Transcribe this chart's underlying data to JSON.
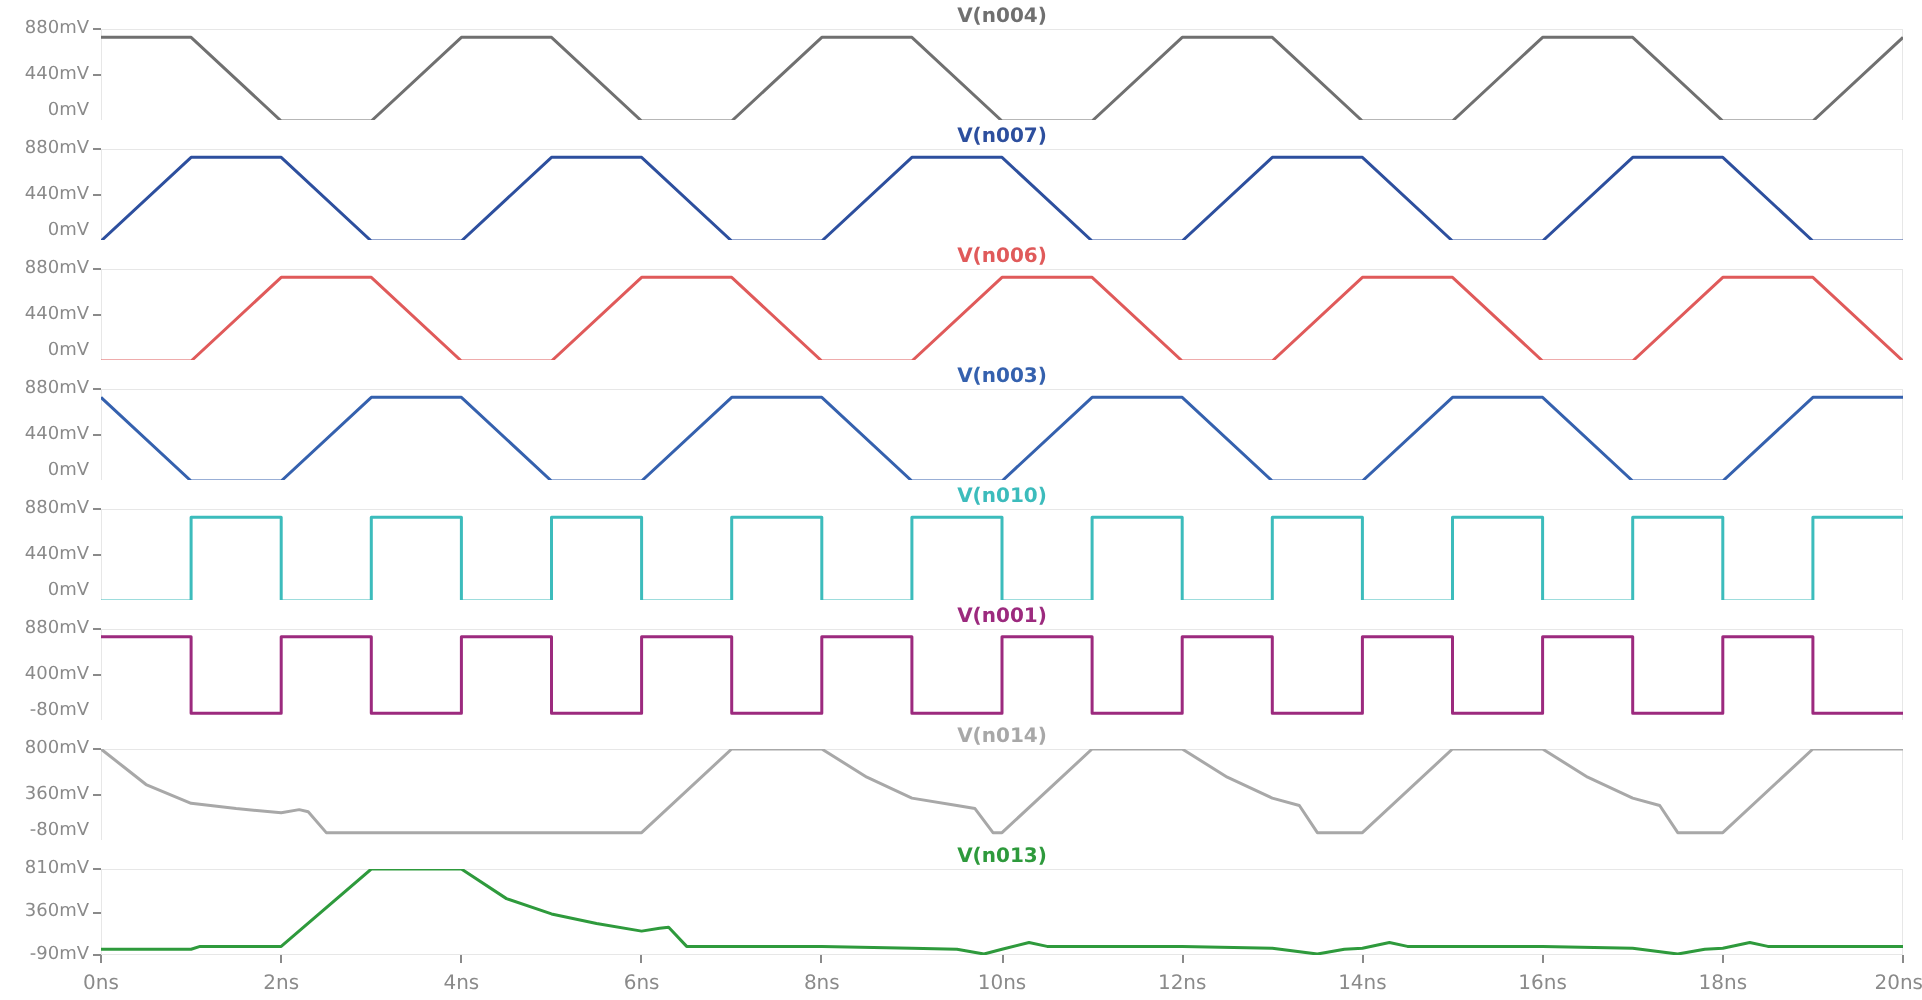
{
  "chart_data": [
    {
      "type": "line",
      "x": [
        0,
        1,
        2,
        3,
        4,
        5,
        6,
        7,
        8,
        9,
        10,
        11,
        12,
        13,
        14,
        15,
        16,
        17,
        18,
        19,
        20
      ],
      "xlim": [
        0,
        20
      ],
      "ylim": [
        0,
        880
      ],
      "yticks": [
        {
          "value": 0,
          "label": "0mV"
        },
        {
          "value": 440,
          "label": "440mV"
        },
        {
          "value": 880,
          "label": "880mV"
        }
      ],
      "tick_labels": "y",
      "series": [
        {
          "name": "V(n004)",
          "color": "#707070",
          "values": [
            800,
            800,
            0,
            0,
            800,
            800,
            0,
            0,
            800,
            800,
            0,
            0,
            800,
            800,
            0,
            0,
            800,
            800,
            0,
            0,
            800
          ]
        }
      ]
    },
    {
      "type": "line",
      "x": [
        0,
        1,
        2,
        3,
        4,
        5,
        6,
        7,
        8,
        9,
        10,
        11,
        12,
        13,
        14,
        15,
        16,
        17,
        18,
        19,
        20
      ],
      "xlim": [
        0,
        20
      ],
      "ylim": [
        0,
        880
      ],
      "yticks": [
        {
          "value": 0,
          "label": "0mV"
        },
        {
          "value": 440,
          "label": "440mV"
        },
        {
          "value": 880,
          "label": "880mV"
        }
      ],
      "tick_labels": "y",
      "series": [
        {
          "name": "V(n007)",
          "color": "#2d4f9e",
          "values": [
            0,
            800,
            800,
            0,
            0,
            800,
            800,
            0,
            0,
            800,
            800,
            0,
            0,
            800,
            800,
            0,
            0,
            800,
            800,
            0,
            0
          ]
        }
      ]
    },
    {
      "type": "line",
      "x": [
        0,
        1,
        2,
        3,
        4,
        5,
        6,
        7,
        8,
        9,
        10,
        11,
        12,
        13,
        14,
        15,
        16,
        17,
        18,
        19,
        20
      ],
      "xlim": [
        0,
        20
      ],
      "ylim": [
        0,
        880
      ],
      "yticks": [
        {
          "value": 0,
          "label": "0mV"
        },
        {
          "value": 440,
          "label": "440mV"
        },
        {
          "value": 880,
          "label": "880mV"
        }
      ],
      "tick_labels": "y",
      "series": [
        {
          "name": "V(n006)",
          "color": "#e05a5a",
          "values": [
            0,
            0,
            800,
            800,
            0,
            0,
            800,
            800,
            0,
            0,
            800,
            800,
            0,
            0,
            800,
            800,
            0,
            0,
            800,
            800,
            0
          ]
        }
      ]
    },
    {
      "type": "line",
      "x": [
        0,
        1,
        2,
        3,
        4,
        5,
        6,
        7,
        8,
        9,
        10,
        11,
        12,
        13,
        14,
        15,
        16,
        17,
        18,
        19,
        20
      ],
      "xlim": [
        0,
        20
      ],
      "ylim": [
        0,
        880
      ],
      "yticks": [
        {
          "value": 0,
          "label": "0mV"
        },
        {
          "value": 440,
          "label": "440mV"
        },
        {
          "value": 880,
          "label": "880mV"
        }
      ],
      "tick_labels": "y",
      "series": [
        {
          "name": "V(n003)",
          "color": "#3561ae",
          "values": [
            800,
            0,
            0,
            800,
            800,
            0,
            0,
            800,
            800,
            0,
            0,
            800,
            800,
            0,
            0,
            800,
            800,
            0,
            0,
            800,
            800
          ]
        }
      ]
    },
    {
      "type": "step",
      "x": [
        0,
        1,
        2,
        3,
        4,
        5,
        6,
        7,
        8,
        9,
        10,
        11,
        12,
        13,
        14,
        15,
        16,
        17,
        18,
        19,
        20
      ],
      "xlim": [
        0,
        20
      ],
      "ylim": [
        0,
        880
      ],
      "yticks": [
        {
          "value": 0,
          "label": "0mV"
        },
        {
          "value": 440,
          "label": "440mV"
        },
        {
          "value": 880,
          "label": "880mV"
        }
      ],
      "tick_labels": "y",
      "series": [
        {
          "name": "V(n010)",
          "color": "#3cbcbc",
          "values": [
            0,
            800,
            0,
            800,
            0,
            800,
            0,
            800,
            0,
            800,
            0,
            800,
            0,
            800,
            0,
            800,
            0,
            800,
            0,
            800,
            800
          ]
        }
      ]
    },
    {
      "type": "step",
      "x": [
        0,
        1,
        2,
        3,
        4,
        5,
        6,
        7,
        8,
        9,
        10,
        11,
        12,
        13,
        14,
        15,
        16,
        17,
        18,
        19,
        20
      ],
      "xlim": [
        0,
        20
      ],
      "ylim": [
        -80,
        880
      ],
      "yticks": [
        {
          "value": -80,
          "label": "-80mV"
        },
        {
          "value": 400,
          "label": "400mV"
        },
        {
          "value": 880,
          "label": "880mV"
        }
      ],
      "tick_labels": "y",
      "series": [
        {
          "name": "V(n001)",
          "color": "#9c2a7e",
          "values": [
            800,
            0,
            800,
            0,
            800,
            0,
            800,
            0,
            800,
            0,
            800,
            0,
            800,
            0,
            800,
            0,
            800,
            0,
            800,
            0,
            0
          ]
        }
      ]
    },
    {
      "type": "line",
      "xlim": [
        0,
        20
      ],
      "ylim": [
        -80,
        800
      ],
      "yticks": [
        {
          "value": -80,
          "label": "-80mV"
        },
        {
          "value": 360,
          "label": "360mV"
        },
        {
          "value": 800,
          "label": "800mV"
        }
      ],
      "tick_labels": "y",
      "series": [
        {
          "name": "V(n014)",
          "color": "#a8a8a8",
          "x": [
            0,
            0.25,
            0.5,
            1,
            1.5,
            2,
            2.2,
            2.3,
            2.5,
            6,
            7,
            8,
            8.5,
            9,
            9.5,
            9.7,
            9.9,
            10,
            11,
            12,
            12.5,
            13,
            13.3,
            13.5,
            14,
            15,
            16,
            16.5,
            17,
            17.3,
            17.5,
            18,
            19,
            20
          ],
          "values": [
            800,
            630,
            460,
            280,
            230,
            190,
            220,
            200,
            0,
            0,
            800,
            800,
            530,
            330,
            260,
            230,
            0,
            0,
            800,
            800,
            530,
            330,
            260,
            0,
            0,
            800,
            800,
            530,
            330,
            260,
            0,
            0,
            800,
            800
          ]
        }
      ]
    },
    {
      "type": "line",
      "xlim": [
        0,
        20
      ],
      "ylim": [
        -90,
        810
      ],
      "yticks": [
        {
          "value": -90,
          "label": "-90mV"
        },
        {
          "value": 360,
          "label": "360mV"
        },
        {
          "value": 810,
          "label": "810mV"
        }
      ],
      "xticks": [
        {
          "value": 0,
          "label": "0ns"
        },
        {
          "value": 2,
          "label": "2ns"
        },
        {
          "value": 4,
          "label": "4ns"
        },
        {
          "value": 6,
          "label": "6ns"
        },
        {
          "value": 8,
          "label": "8ns"
        },
        {
          "value": 10,
          "label": "10ns"
        },
        {
          "value": 12,
          "label": "12ns"
        },
        {
          "value": 14,
          "label": "14ns"
        },
        {
          "value": 16,
          "label": "16ns"
        },
        {
          "value": 18,
          "label": "18ns"
        },
        {
          "value": 20,
          "label": "20ns"
        }
      ],
      "series": [
        {
          "name": "V(n013)",
          "color": "#2e9a3c",
          "x": [
            0,
            1,
            1.1,
            2,
            3,
            4,
            4.5,
            5,
            5.5,
            6,
            6.2,
            6.3,
            6.5,
            8,
            9,
            9.5,
            9.8,
            10,
            10.3,
            10.5,
            12,
            13,
            13.5,
            13.8,
            14,
            14.3,
            14.5,
            16,
            17,
            17.5,
            17.8,
            18,
            18.3,
            18.5,
            20
          ],
          "values": [
            -30,
            -30,
            0,
            0,
            810,
            810,
            500,
            340,
            240,
            160,
            190,
            200,
            0,
            0,
            -20,
            -30,
            -80,
            -30,
            40,
            0,
            0,
            -20,
            -80,
            -30,
            -20,
            40,
            0,
            0,
            -20,
            -80,
            -30,
            -20,
            40,
            0,
            0
          ]
        }
      ]
    }
  ]
}
